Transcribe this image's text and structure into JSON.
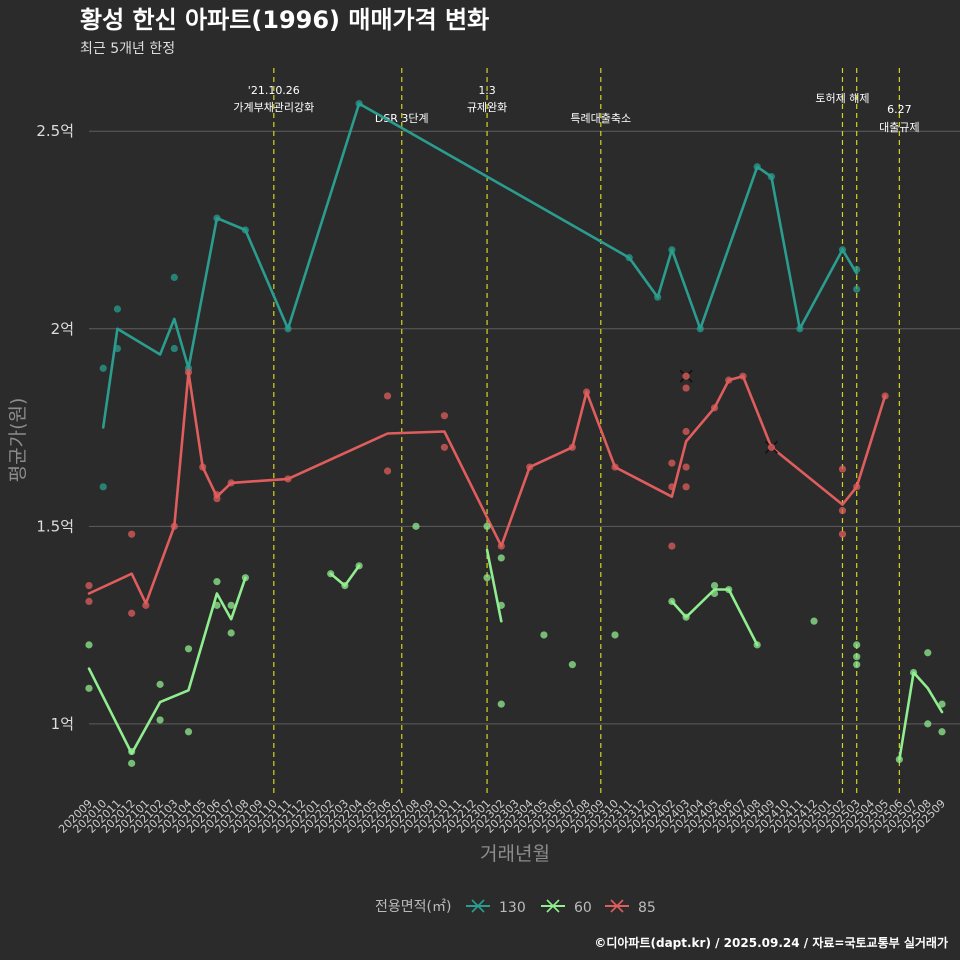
{
  "chart_data": {
    "type": "line",
    "title": "황성 한신 아파트(1996) 매매가격 변화",
    "subtitle": "최근 5개년 한정",
    "xlabel": "거래년월",
    "ylabel": "평균가(원)",
    "ylim": [
      0.82,
      2.66
    ],
    "yticks": [
      {
        "v": 1.0,
        "label": "1억"
      },
      {
        "v": 1.5,
        "label": "1.5억"
      },
      {
        "v": 2.0,
        "label": "2억"
      },
      {
        "v": 2.5,
        "label": "2.5억"
      }
    ],
    "categories": [
      "202009",
      "202010",
      "202011",
      "202012",
      "202101",
      "202102",
      "202103",
      "202104",
      "202105",
      "202106",
      "202107",
      "202108",
      "202109",
      "202110",
      "202111",
      "202112",
      "202201",
      "202202",
      "202203",
      "202204",
      "202205",
      "202206",
      "202207",
      "202208",
      "202209",
      "202210",
      "202211",
      "202212",
      "202301",
      "202302",
      "202303",
      "202304",
      "202305",
      "202306",
      "202307",
      "202308",
      "202309",
      "202310",
      "202311",
      "202312",
      "202401",
      "202402",
      "202403",
      "202404",
      "202405",
      "202406",
      "202407",
      "202408",
      "202409",
      "202410",
      "202411",
      "202412",
      "202501",
      "202502",
      "202503",
      "202504",
      "202505",
      "202506",
      "202507",
      "202508",
      "202509"
    ],
    "legend_title": "전용면적(㎡)",
    "legend_placement": "bottom",
    "grid": true,
    "series": [
      {
        "name": "130",
        "color": "#2a9d8f",
        "lines": [
          [
            [
              "202010",
              1.75
            ],
            [
              "202011",
              2.0
            ],
            [
              "202102",
              1.935
            ],
            [
              "202103",
              2.025
            ],
            [
              "202104",
              1.9
            ],
            [
              "202106",
              2.28
            ],
            [
              "202108",
              2.25
            ],
            [
              "202111",
              2.0
            ],
            [
              "202204",
              2.57
            ],
            [
              "202311",
              2.18
            ],
            [
              "202401",
              2.08
            ],
            [
              "202402",
              2.2
            ],
            [
              "202404",
              2.0
            ],
            [
              "202408",
              2.41
            ],
            [
              "202409",
              2.385
            ],
            [
              "202411",
              2.0
            ],
            [
              "202502",
              2.2
            ],
            [
              "202503",
              2.14
            ]
          ]
        ],
        "points": [
          [
            "202010",
            1.9
          ],
          [
            "202010",
            1.6
          ],
          [
            "202011",
            2.05
          ],
          [
            "202011",
            1.95
          ],
          [
            "202103",
            2.13
          ],
          [
            "202103",
            1.95
          ],
          [
            "202104",
            1.9
          ],
          [
            "202106",
            2.28
          ],
          [
            "202108",
            2.25
          ],
          [
            "202111",
            2.0
          ],
          [
            "202204",
            2.57
          ],
          [
            "202311",
            2.18
          ],
          [
            "202401",
            2.08
          ],
          [
            "202402",
            2.2
          ],
          [
            "202404",
            2.0
          ],
          [
            "202408",
            2.41
          ],
          [
            "202409",
            2.385
          ],
          [
            "202411",
            2.0
          ],
          [
            "202502",
            2.2
          ],
          [
            "202503",
            2.15
          ],
          [
            "202503",
            2.1
          ]
        ]
      },
      {
        "name": "60",
        "color": "#90ee90",
        "lines": [
          [
            [
              "202009",
              1.14
            ],
            [
              "202012",
              0.925
            ],
            [
              "202102",
              1.055
            ],
            [
              "202104",
              1.085
            ],
            [
              "202106",
              1.33
            ],
            [
              "202107",
              1.265
            ],
            [
              "202108",
              1.37
            ]
          ],
          [
            [
              "202202",
              1.38
            ],
            [
              "202203",
              1.35
            ],
            [
              "202204",
              1.4
            ]
          ],
          [
            [
              "202301",
              1.44
            ],
            [
              "202302",
              1.26
            ]
          ],
          [
            [
              "202402",
              1.31
            ],
            [
              "202403",
              1.27
            ],
            [
              "202405",
              1.34
            ],
            [
              "202406",
              1.34
            ],
            [
              "202408",
              1.2
            ]
          ],
          [
            [
              "202506",
              0.91
            ],
            [
              "202507",
              1.13
            ],
            [
              "202508",
              1.09
            ],
            [
              "202509",
              1.03
            ]
          ]
        ],
        "points": [
          [
            "202009",
            1.2
          ],
          [
            "202009",
            1.09
          ],
          [
            "202012",
            0.93
          ],
          [
            "202012",
            0.9
          ],
          [
            "202102",
            1.1
          ],
          [
            "202102",
            1.01
          ],
          [
            "202104",
            1.19
          ],
          [
            "202104",
            0.98
          ],
          [
            "202106",
            1.36
          ],
          [
            "202106",
            1.3
          ],
          [
            "202107",
            1.3
          ],
          [
            "202107",
            1.23
          ],
          [
            "202108",
            1.37
          ],
          [
            "202202",
            1.38
          ],
          [
            "202203",
            1.35
          ],
          [
            "202204",
            1.4
          ],
          [
            "202208",
            1.5
          ],
          [
            "202301",
            1.5
          ],
          [
            "202301",
            1.37
          ],
          [
            "202302",
            1.42
          ],
          [
            "202302",
            1.3
          ],
          [
            "202302",
            1.05
          ],
          [
            "202305",
            1.225
          ],
          [
            "202307",
            1.15
          ],
          [
            "202310",
            1.225
          ],
          [
            "202402",
            1.31
          ],
          [
            "202403",
            1.27
          ],
          [
            "202405",
            1.35
          ],
          [
            "202405",
            1.33
          ],
          [
            "202406",
            1.34
          ],
          [
            "202408",
            1.2
          ],
          [
            "202412",
            1.26
          ],
          [
            "202503",
            1.2
          ],
          [
            "202503",
            1.17
          ],
          [
            "202503",
            1.15
          ],
          [
            "202506",
            0.91
          ],
          [
            "202507",
            1.13
          ],
          [
            "202508",
            1.18
          ],
          [
            "202508",
            1.0
          ],
          [
            "202509",
            1.05
          ],
          [
            "202509",
            0.98
          ]
        ]
      },
      {
        "name": "85",
        "color": "#e05d5d",
        "lines": [
          [
            [
              "202009",
              1.33
            ],
            [
              "202012",
              1.38
            ],
            [
              "202101",
              1.305
            ],
            [
              "202103",
              1.5
            ],
            [
              "202104",
              1.89
            ],
            [
              "202105",
              1.65
            ],
            [
              "202106",
              1.575
            ],
            [
              "202107",
              1.61
            ],
            [
              "202111",
              1.62
            ],
            [
              "202206",
              1.735
            ],
            [
              "202210",
              1.74
            ],
            [
              "202302",
              1.45
            ],
            [
              "202304",
              1.65
            ],
            [
              "202307",
              1.7
            ],
            [
              "202308",
              1.84
            ],
            [
              "202310",
              1.65
            ],
            [
              "202402",
              1.575
            ],
            [
              "202403",
              1.715
            ],
            [
              "202405",
              1.8
            ],
            [
              "202406",
              1.87
            ],
            [
              "202407",
              1.88
            ],
            [
              "202409",
              1.7
            ],
            [
              "202502",
              1.555
            ],
            [
              "202503",
              1.6
            ],
            [
              "202505",
              1.83
            ]
          ]
        ],
        "points": [
          [
            "202009",
            1.35
          ],
          [
            "202009",
            1.31
          ],
          [
            "202012",
            1.48
          ],
          [
            "202012",
            1.28
          ],
          [
            "202101",
            1.3
          ],
          [
            "202103",
            1.5
          ],
          [
            "202104",
            1.89
          ],
          [
            "202105",
            1.65
          ],
          [
            "202106",
            1.58
          ],
          [
            "202106",
            1.57
          ],
          [
            "202107",
            1.61
          ],
          [
            "202111",
            1.62
          ],
          [
            "202206",
            1.83
          ],
          [
            "202206",
            1.64
          ],
          [
            "202210",
            1.78
          ],
          [
            "202210",
            1.7
          ],
          [
            "202302",
            1.45
          ],
          [
            "202304",
            1.65
          ],
          [
            "202307",
            1.7
          ],
          [
            "202308",
            1.84
          ],
          [
            "202310",
            1.65
          ],
          [
            "202402",
            1.66
          ],
          [
            "202402",
            1.6
          ],
          [
            "202402",
            1.45
          ],
          [
            "202403",
            1.85
          ],
          [
            "202403",
            1.74
          ],
          [
            "202403",
            1.65
          ],
          [
            "202403",
            1.6
          ],
          [
            "202405",
            1.8
          ],
          [
            "202406",
            1.87
          ],
          [
            "202407",
            1.88
          ],
          [
            "202502",
            1.645
          ],
          [
            "202502",
            1.54
          ],
          [
            "202502",
            1.48
          ],
          [
            "202503",
            1.6
          ],
          [
            "202505",
            1.83
          ]
        ],
        "cross_points": [
          [
            "202403",
            1.88
          ],
          [
            "202409",
            1.7
          ]
        ]
      }
    ],
    "events": [
      {
        "x": "202110",
        "lines": [
          "'21.10.26",
          "가계부채관리강화"
        ]
      },
      {
        "x": "202207",
        "lines": [
          "DSR 3단계"
        ]
      },
      {
        "x": "202301",
        "lines": [
          "1.3",
          "규제완화"
        ]
      },
      {
        "x": "202309",
        "lines": [
          "특례대출축소"
        ]
      },
      {
        "x": "202502",
        "lines": [
          "토허제 해제"
        ]
      },
      {
        "x": "202503",
        "lines": []
      },
      {
        "x": "202506",
        "lines": [
          "6.27",
          "대출규제"
        ]
      }
    ],
    "event_color": "#d4d420",
    "caption": "©디아파트(dapt.kr) / 2025.09.24 / 자료=국토교통부 실거래가"
  }
}
